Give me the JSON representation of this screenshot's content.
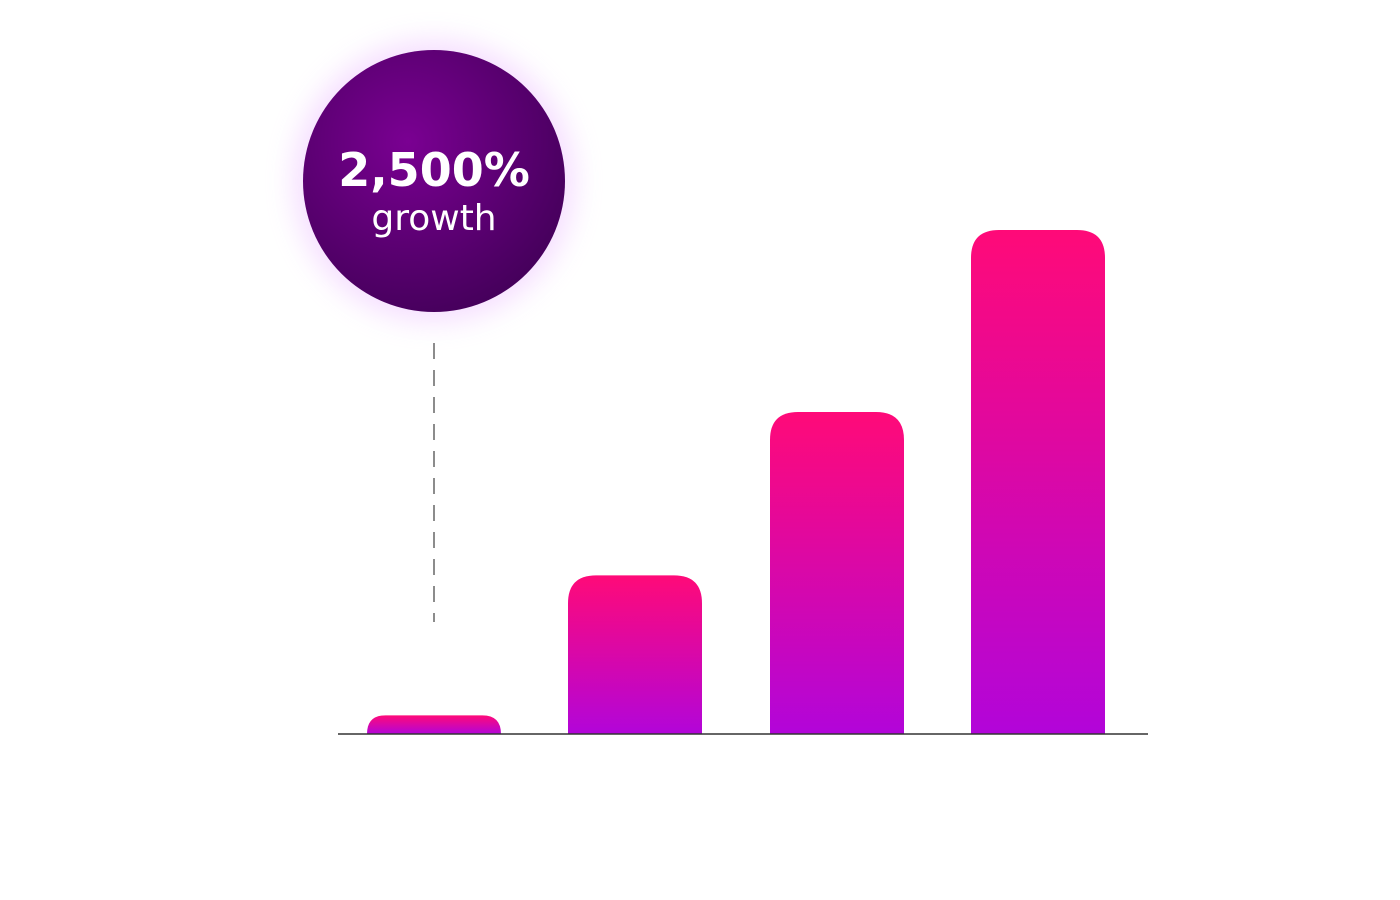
{
  "chart_data": {
    "type": "bar",
    "categories": [
      "",
      "",
      "",
      ""
    ],
    "values": [
      4,
      34,
      69,
      108
    ],
    "ylim": [
      0,
      120
    ],
    "grid": false,
    "title": "",
    "xlabel": "",
    "ylabel": ""
  },
  "callout": {
    "value": "2,500%",
    "label": "growth"
  },
  "colors": {
    "bar_top": "#ff0a78",
    "bar_bottom": "#b205d9",
    "bubble_light": "#7a0092",
    "bubble_dark": "#44005a",
    "baseline": "#333333",
    "leader": "#666666"
  }
}
